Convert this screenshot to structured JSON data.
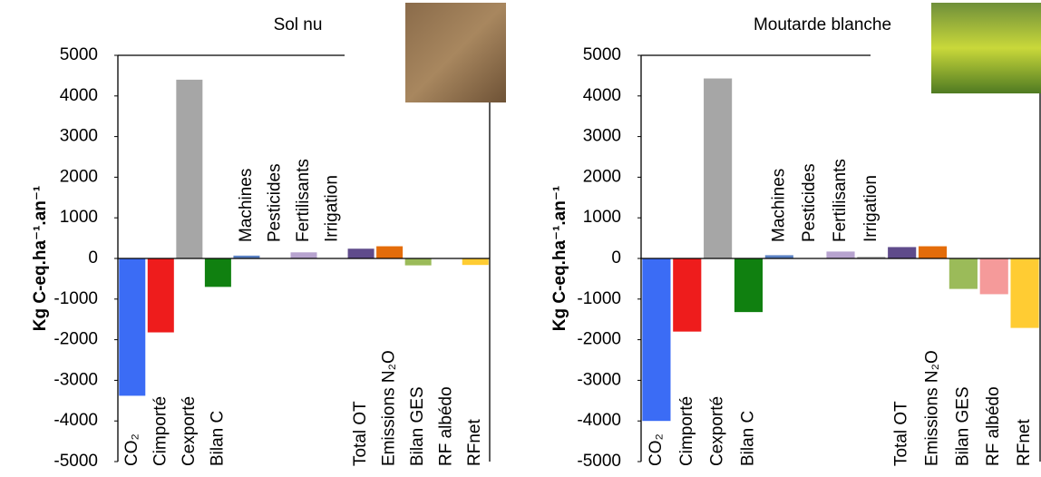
{
  "chart_data": [
    {
      "type": "bar",
      "title": "Sol nu",
      "y_label": "Kg C-eq.ha⁻¹.an⁻¹",
      "categories": [
        "CO₂",
        "Cimporté",
        "Cexporté",
        "Bilan C",
        "Machines",
        "Pesticides",
        "Fertilisants",
        "Irrigation",
        "Total OT",
        "Emissions N₂O",
        "Bilan GES",
        "RF albédo",
        "RFnet"
      ],
      "values": [
        -3380,
        -1820,
        4400,
        -700,
        70,
        10,
        150,
        10,
        240,
        300,
        -170,
        0,
        -160
      ],
      "colors": [
        "#3b6cf5",
        "#ee1c1c",
        "#a6a6a6",
        "#108010",
        "#5b82c4",
        "#8aa0c8",
        "#b7a3cf",
        "#a6a6a6",
        "#5f4b8b",
        "#e46c0a",
        "#9bbb59",
        "#f59a9a",
        "#ffcc33"
      ],
      "ylim": [
        -5000,
        5000
      ],
      "yticks": [
        -5000,
        -4000,
        -3000,
        -2000,
        -1000,
        0,
        1000,
        2000,
        3000,
        4000,
        5000
      ]
    },
    {
      "type": "bar",
      "title": "Moutarde blanche",
      "y_label": "Kg C-eq.ha⁻¹.an⁻¹",
      "categories": [
        "CO₂",
        "Cimporté",
        "Cexporté",
        "Bilan C",
        "Machines",
        "Pesticides",
        "Fertilisants",
        "Irrigation",
        "Total OT",
        "Emissions N₂O",
        "Bilan GES",
        "RF albédo",
        "RFnet"
      ],
      "values": [
        -4000,
        -1800,
        4430,
        -1320,
        80,
        10,
        170,
        40,
        280,
        300,
        -750,
        -880,
        -1710
      ],
      "colors": [
        "#3b6cf5",
        "#ee1c1c",
        "#a6a6a6",
        "#108010",
        "#5b82c4",
        "#8aa0c8",
        "#b7a3cf",
        "#a6a6a6",
        "#5f4b8b",
        "#e46c0a",
        "#9bbb59",
        "#f59a9a",
        "#ffcc33"
      ],
      "ylim": [
        -5000,
        5000
      ],
      "yticks": [
        -5000,
        -4000,
        -3000,
        -2000,
        -1000,
        0,
        1000,
        2000,
        3000,
        4000,
        5000
      ]
    }
  ]
}
